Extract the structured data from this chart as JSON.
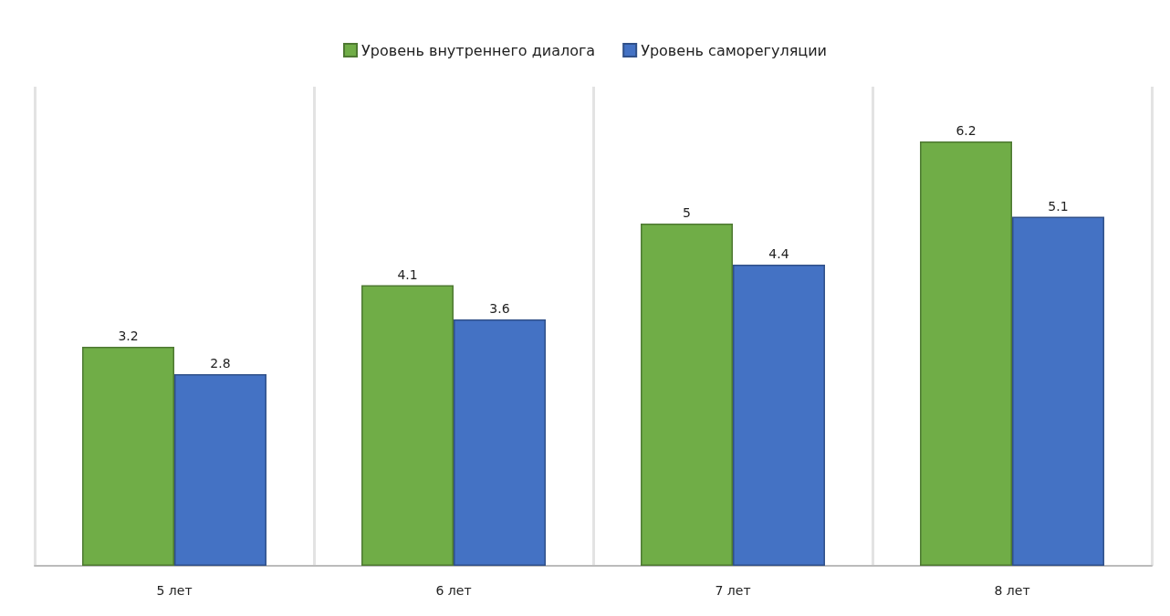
{
  "chart_data": {
    "type": "bar",
    "categories": [
      "5 лет",
      "6 лет",
      "7 лет",
      "8 лет"
    ],
    "series": [
      {
        "name": "Уровень внутреннего диалога",
        "color": "#70ad47",
        "values": [
          3.2,
          4.1,
          5,
          6.2
        ]
      },
      {
        "name": "Уровень саморегуляции",
        "color": "#4472c4",
        "values": [
          2.8,
          3.6,
          4.4,
          5.1
        ]
      }
    ],
    "data_labels": true,
    "grid": "x",
    "legend": "top"
  }
}
